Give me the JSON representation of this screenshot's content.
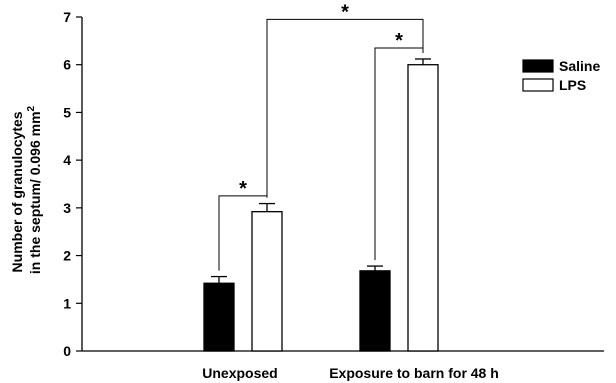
{
  "chart_data": {
    "type": "bar",
    "title": "",
    "xlabel": "",
    "ylabel_lines": [
      "Number of granulocytes",
      "in the septum/ 0.096 mm"
    ],
    "ylabel_superscript": "2",
    "ylim": [
      0,
      7
    ],
    "yticks": [
      "0",
      "1",
      "2",
      "3",
      "4",
      "5",
      "6",
      "7"
    ],
    "categories": [
      "Unexposed",
      "Exposure to barn for 48 h"
    ],
    "series": [
      {
        "name": "Saline",
        "values": [
          1.42,
          1.68
        ],
        "errors": [
          0.14,
          0.1
        ],
        "color": "#000000"
      },
      {
        "name": "LPS",
        "values": [
          2.92,
          6.0
        ],
        "errors": [
          0.17,
          0.12
        ],
        "color": "#ffffff"
      }
    ],
    "legend_position": "right",
    "significance": [
      {
        "label": "*",
        "group_a": [
          0,
          0
        ],
        "group_b": [
          0,
          1
        ],
        "level": 3.25
      },
      {
        "label": "*",
        "group_a": [
          1,
          0
        ],
        "group_b": [
          1,
          1
        ],
        "level": 6.35
      },
      {
        "label": "*",
        "group_a": [
          0,
          1
        ],
        "group_b": [
          1,
          1
        ],
        "level": 6.95
      }
    ]
  }
}
